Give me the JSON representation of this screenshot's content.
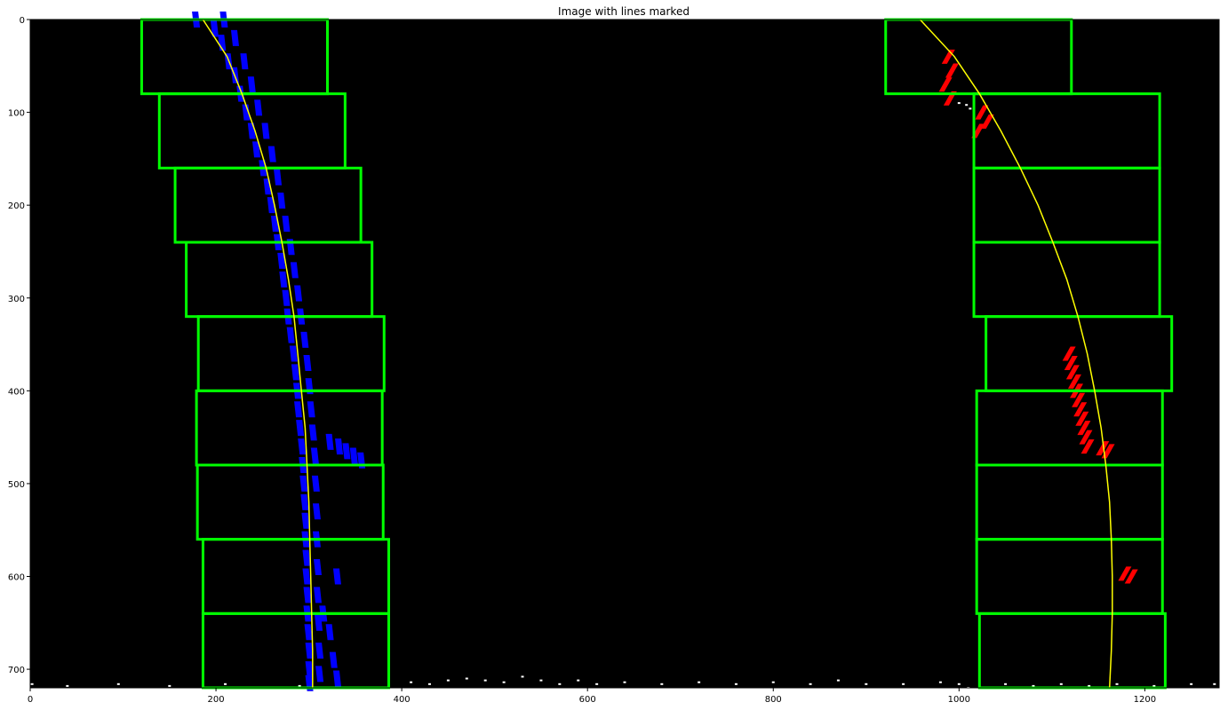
{
  "chart_data": {
    "type": "scatter",
    "title": "Image with lines marked",
    "xlabel": "",
    "ylabel": "",
    "xlim": [
      0,
      1280
    ],
    "ylim": [
      720,
      0
    ],
    "x_ticks": [
      0,
      200,
      400,
      600,
      800,
      1000,
      1200
    ],
    "y_ticks": [
      0,
      100,
      200,
      300,
      400,
      500,
      600,
      700
    ],
    "grid": false,
    "background": "#000000",
    "colors": {
      "window": "#00ff00",
      "left_pixels": "#0000ff",
      "right_pixels": "#ff0000",
      "fit_line": "#ffff00",
      "other_pixels": "#ffffff"
    },
    "sliding_windows": [
      {
        "side": "left",
        "x0": 120,
        "x1": 320,
        "y0": 0,
        "y1": 80
      },
      {
        "side": "left",
        "x0": 139,
        "x1": 339,
        "y0": 80,
        "y1": 160
      },
      {
        "side": "left",
        "x0": 156,
        "x1": 356,
        "y0": 160,
        "y1": 240
      },
      {
        "side": "left",
        "x0": 168,
        "x1": 368,
        "y0": 240,
        "y1": 320
      },
      {
        "side": "left",
        "x0": 181,
        "x1": 381,
        "y0": 320,
        "y1": 400
      },
      {
        "side": "left",
        "x0": 179,
        "x1": 379,
        "y0": 400,
        "y1": 480
      },
      {
        "side": "left",
        "x0": 180,
        "x1": 380,
        "y0": 480,
        "y1": 560
      },
      {
        "side": "left",
        "x0": 186,
        "x1": 386,
        "y0": 560,
        "y1": 640
      },
      {
        "side": "left",
        "x0": 186,
        "x1": 386,
        "y0": 640,
        "y1": 720
      },
      {
        "side": "right",
        "x0": 921,
        "x1": 1121,
        "y0": 0,
        "y1": 80
      },
      {
        "side": "right",
        "x0": 1016,
        "x1": 1216,
        "y0": 80,
        "y1": 160
      },
      {
        "side": "right",
        "x0": 1016,
        "x1": 1216,
        "y0": 160,
        "y1": 240
      },
      {
        "side": "right",
        "x0": 1016,
        "x1": 1216,
        "y0": 240,
        "y1": 320
      },
      {
        "side": "right",
        "x0": 1029,
        "x1": 1229,
        "y0": 320,
        "y1": 400
      },
      {
        "side": "right",
        "x0": 1019,
        "x1": 1219,
        "y0": 400,
        "y1": 480
      },
      {
        "side": "right",
        "x0": 1019,
        "x1": 1219,
        "y0": 480,
        "y1": 560
      },
      {
        "side": "right",
        "x0": 1019,
        "x1": 1219,
        "y0": 560,
        "y1": 640
      },
      {
        "side": "right",
        "x0": 1022,
        "x1": 1222,
        "y0": 640,
        "y1": 720
      }
    ],
    "series": [
      {
        "role": "left-fit",
        "points": [
          [
            186,
            0
          ],
          [
            212,
            40
          ],
          [
            228,
            80
          ],
          [
            242,
            120
          ],
          [
            254,
            160
          ],
          [
            263,
            200
          ],
          [
            271,
            240
          ],
          [
            278,
            280
          ],
          [
            284,
            320
          ],
          [
            288,
            360
          ],
          [
            292,
            400
          ],
          [
            296,
            440
          ],
          [
            298,
            480
          ],
          [
            300,
            520
          ],
          [
            301,
            560
          ],
          [
            302,
            600
          ],
          [
            303,
            640
          ],
          [
            304,
            680
          ],
          [
            304,
            720
          ]
        ]
      },
      {
        "role": "right-fit",
        "points": [
          [
            958,
            0
          ],
          [
            995,
            40
          ],
          [
            1022,
            80
          ],
          [
            1045,
            120
          ],
          [
            1066,
            160
          ],
          [
            1085,
            200
          ],
          [
            1101,
            240
          ],
          [
            1116,
            280
          ],
          [
            1128,
            320
          ],
          [
            1138,
            360
          ],
          [
            1146,
            400
          ],
          [
            1153,
            440
          ],
          [
            1158,
            480
          ],
          [
            1162,
            520
          ],
          [
            1164,
            560
          ],
          [
            1165,
            600
          ],
          [
            1165,
            640
          ],
          [
            1164,
            680
          ],
          [
            1162,
            720
          ]
        ]
      },
      {
        "role": "left-lane-pixels",
        "points": [
          [
            178,
            0
          ],
          [
            198,
            10
          ],
          [
            206,
            25
          ],
          [
            213,
            45
          ],
          [
            220,
            60
          ],
          [
            226,
            80
          ],
          [
            232,
            100
          ],
          [
            238,
            120
          ],
          [
            243,
            140
          ],
          [
            250,
            160
          ],
          [
            255,
            180
          ],
          [
            259,
            200
          ],
          [
            263,
            220
          ],
          [
            266,
            240
          ],
          [
            270,
            260
          ],
          [
            272,
            280
          ],
          [
            275,
            300
          ],
          [
            277,
            320
          ],
          [
            280,
            340
          ],
          [
            283,
            360
          ],
          [
            285,
            380
          ],
          [
            287,
            400
          ],
          [
            288,
            420
          ],
          [
            290,
            440
          ],
          [
            292,
            460
          ],
          [
            293,
            480
          ],
          [
            294,
            500
          ],
          [
            295,
            520
          ],
          [
            296,
            540
          ],
          [
            296,
            560
          ],
          [
            297,
            580
          ],
          [
            297,
            600
          ],
          [
            298,
            620
          ],
          [
            298,
            640
          ],
          [
            299,
            660
          ],
          [
            300,
            680
          ],
          [
            300,
            700
          ],
          [
            300,
            715
          ],
          [
            208,
            0
          ],
          [
            220,
            20
          ],
          [
            230,
            45
          ],
          [
            238,
            70
          ],
          [
            245,
            95
          ],
          [
            253,
            120
          ],
          [
            260,
            145
          ],
          [
            266,
            170
          ],
          [
            270,
            195
          ],
          [
            275,
            220
          ],
          [
            280,
            245
          ],
          [
            284,
            270
          ],
          [
            288,
            295
          ],
          [
            291,
            320
          ],
          [
            295,
            345
          ],
          [
            298,
            370
          ],
          [
            300,
            395
          ],
          [
            302,
            420
          ],
          [
            304,
            445
          ],
          [
            306,
            470
          ],
          [
            307,
            500
          ],
          [
            308,
            530
          ],
          [
            308,
            560
          ],
          [
            309,
            590
          ],
          [
            309,
            620
          ],
          [
            310,
            650
          ],
          [
            311,
            680
          ],
          [
            311,
            705
          ],
          [
            322,
            455
          ],
          [
            332,
            460
          ],
          [
            340,
            465
          ],
          [
            348,
            470
          ],
          [
            356,
            475
          ],
          [
            330,
            600
          ],
          [
            315,
            640
          ],
          [
            322,
            660
          ],
          [
            326,
            690
          ],
          [
            330,
            710
          ]
        ]
      },
      {
        "role": "right-lane-pixels",
        "points": [
          [
            988,
            40
          ],
          [
            992,
            55
          ],
          [
            985,
            70
          ],
          [
            990,
            85
          ],
          [
            1024,
            100
          ],
          [
            1030,
            110
          ],
          [
            1020,
            120
          ],
          [
            1118,
            360
          ],
          [
            1120,
            370
          ],
          [
            1122,
            380
          ],
          [
            1124,
            390
          ],
          [
            1126,
            400
          ],
          [
            1128,
            410
          ],
          [
            1130,
            420
          ],
          [
            1132,
            430
          ],
          [
            1134,
            440
          ],
          [
            1136,
            450
          ],
          [
            1138,
            460
          ],
          [
            1154,
            462
          ],
          [
            1160,
            465
          ],
          [
            1178,
            597
          ],
          [
            1185,
            600
          ]
        ]
      },
      {
        "role": "other-pixels",
        "points": [
          [
            2,
            716
          ],
          [
            40,
            718
          ],
          [
            95,
            716
          ],
          [
            150,
            718
          ],
          [
            210,
            716
          ],
          [
            290,
            718
          ],
          [
            410,
            714
          ],
          [
            430,
            716
          ],
          [
            450,
            712
          ],
          [
            470,
            710
          ],
          [
            490,
            712
          ],
          [
            510,
            714
          ],
          [
            530,
            708
          ],
          [
            550,
            712
          ],
          [
            570,
            716
          ],
          [
            590,
            712
          ],
          [
            610,
            716
          ],
          [
            640,
            714
          ],
          [
            680,
            716
          ],
          [
            720,
            714
          ],
          [
            760,
            716
          ],
          [
            800,
            714
          ],
          [
            840,
            716
          ],
          [
            870,
            712
          ],
          [
            900,
            716
          ],
          [
            940,
            716
          ],
          [
            980,
            714
          ],
          [
            1000,
            716
          ],
          [
            1010,
            720
          ],
          [
            1050,
            716
          ],
          [
            1080,
            718
          ],
          [
            1110,
            716
          ],
          [
            1140,
            718
          ],
          [
            1170,
            716
          ],
          [
            1210,
            718
          ],
          [
            1250,
            716
          ],
          [
            1275,
            716
          ],
          [
            1000,
            90
          ],
          [
            1008,
            92
          ],
          [
            1012,
            96
          ]
        ]
      }
    ]
  }
}
